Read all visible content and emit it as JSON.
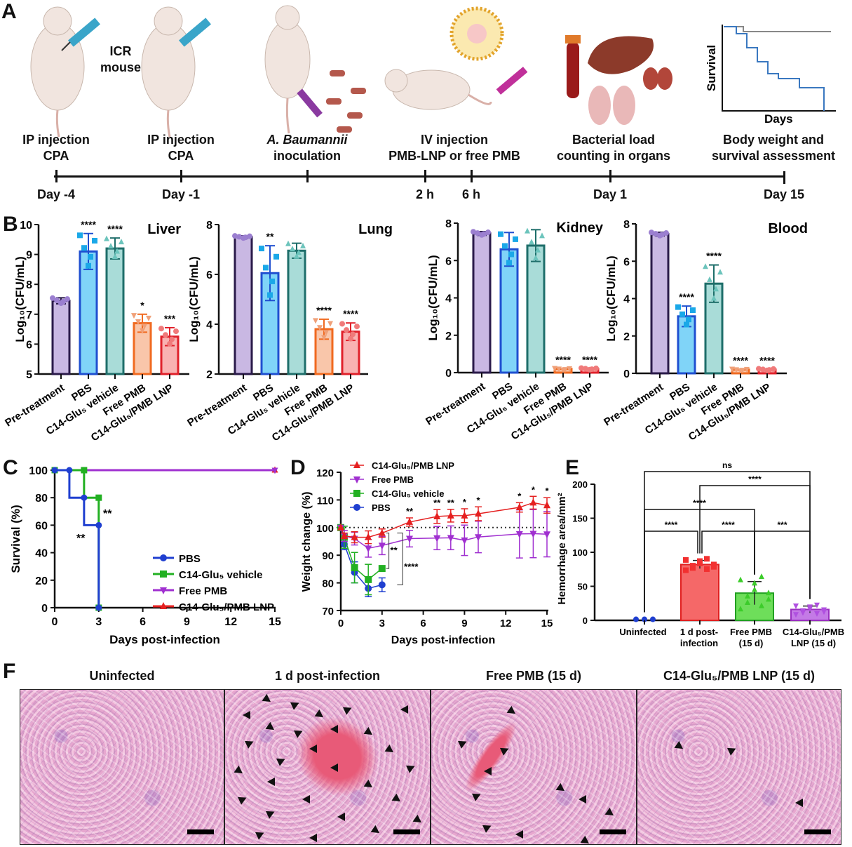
{
  "panel_labels": [
    "A",
    "B",
    "C",
    "D",
    "E",
    "F"
  ],
  "panelA": {
    "mouse_label": "ICR\nmouse",
    "steps": [
      {
        "label": "IP injection\nCPA",
        "day": "Day -4"
      },
      {
        "label": "IP injection\nCPA",
        "day": "Day -1"
      },
      {
        "label_italic": "A. Baumannii",
        "label": "inoculation",
        "day": ""
      },
      {
        "label": "IV injection\nPMB-LNP or free PMB",
        "day": "2 h"
      },
      {
        "label": "",
        "day": "6 h"
      },
      {
        "label": "Bacterial load\ncounting in organs",
        "day": "Day 1"
      },
      {
        "label": "Body weight and\nsurvival assessment",
        "day": "Day 15"
      }
    ],
    "mini_plot": {
      "ylabel": "Survival",
      "xlabel": "Days"
    }
  },
  "chart_data": [
    {
      "id": "B-liver",
      "type": "bar",
      "title": "Liver",
      "ylabel": "Log10(CFU/mL)",
      "ylim": [
        5,
        10
      ],
      "yticks": [
        5,
        6,
        7,
        8,
        9,
        10
      ],
      "categories": [
        "Pre-treatment",
        "PBS",
        "C14-Glu₅ vehicle",
        "Free PMB",
        "C14-Glu₅/PMB LNP"
      ],
      "values": [
        7.45,
        9.1,
        9.2,
        6.7,
        6.25
      ],
      "errors": [
        0.1,
        0.6,
        0.35,
        0.3,
        0.3
      ],
      "significance": [
        "",
        "****",
        "****",
        "*",
        "***"
      ]
    },
    {
      "id": "B-lung",
      "type": "bar",
      "title": "Lung",
      "ylabel": "Log10(CFU/mL)",
      "ylim": [
        2,
        8
      ],
      "yticks": [
        2,
        4,
        6,
        8
      ],
      "categories": [
        "Pre-treatment",
        "PBS",
        "C14-Glu₅ vehicle",
        "Free PMB",
        "C14-Glu₅/PMB LNP"
      ],
      "values": [
        7.5,
        6.05,
        6.95,
        3.8,
        3.7
      ],
      "errors": [
        0.05,
        1.1,
        0.3,
        0.4,
        0.35
      ],
      "significance": [
        "",
        "**",
        "",
        "****",
        "****"
      ]
    },
    {
      "id": "B-kidney",
      "type": "bar",
      "title": "Kidney",
      "ylabel": "Log10(CFU/mL)",
      "ylim": [
        0,
        8
      ],
      "yticks": [
        0,
        2,
        4,
        6,
        8
      ],
      "categories": [
        "Pre-treatment",
        "PBS",
        "C14-Glu₅ vehicle",
        "Free PMB",
        "C14-Glu₅/PMB LNP"
      ],
      "values": [
        7.45,
        6.6,
        6.8,
        0.2,
        0.2
      ],
      "errors": [
        0.1,
        0.9,
        0.85,
        0,
        0
      ],
      "significance": [
        "",
        "",
        "",
        "****",
        "****"
      ]
    },
    {
      "id": "B-blood",
      "type": "bar",
      "title": "Blood",
      "ylabel": "Log10(CFU/mL)",
      "ylim": [
        0,
        8
      ],
      "yticks": [
        0,
        2,
        4,
        6,
        8
      ],
      "categories": [
        "Pre-treatment",
        "PBS",
        "C14-Glu₅ vehicle",
        "Free PMB",
        "C14-Glu₅/PMB LNP"
      ],
      "values": [
        7.45,
        3.05,
        4.8,
        0.2,
        0.2
      ],
      "errors": [
        0.1,
        0.55,
        1.0,
        0,
        0
      ],
      "significance": [
        "",
        "****",
        "****",
        "****",
        "****"
      ]
    },
    {
      "id": "C",
      "type": "line",
      "title": "",
      "xlabel": "Days post-infection",
      "ylabel": "Survival (%)",
      "xlim": [
        0,
        15
      ],
      "ylim": [
        0,
        100
      ],
      "xticks": [
        0,
        3,
        6,
        9,
        12,
        15
      ],
      "yticks": [
        0,
        20,
        40,
        60,
        80,
        100
      ],
      "series": [
        {
          "name": "PBS",
          "color": "#1f3fd0",
          "x": [
            0,
            1,
            1,
            2,
            2,
            3,
            3
          ],
          "y": [
            100,
            100,
            80,
            80,
            60,
            60,
            0
          ]
        },
        {
          "name": "C14-Glu₅ vehicle",
          "color": "#22b022",
          "x": [
            0,
            2,
            2,
            3,
            3
          ],
          "y": [
            100,
            100,
            80,
            80,
            0
          ]
        },
        {
          "name": "Free PMB",
          "color": "#a030d0",
          "x": [
            0,
            15
          ],
          "y": [
            100,
            100
          ]
        },
        {
          "name": "C14-Glu₅/PMB LNP",
          "color": "#e52020",
          "x": [
            0,
            15
          ],
          "y": [
            100,
            100
          ]
        }
      ],
      "annotations": [
        "**",
        "**"
      ]
    },
    {
      "id": "D",
      "type": "line",
      "xlabel": "Days post-infection",
      "ylabel": "Weight change (%)",
      "xlim": [
        0,
        15
      ],
      "ylim": [
        70,
        120
      ],
      "xticks": [
        0,
        3,
        6,
        9,
        12,
        15
      ],
      "yticks": [
        70,
        80,
        90,
        100,
        110,
        120
      ],
      "reference_line": 100,
      "series": [
        {
          "name": "C14-Glu₅/PMB LNP",
          "color": "#e52020",
          "marker": "triangle-up",
          "x": [
            0,
            0.25,
            1,
            2,
            3,
            5,
            7,
            8,
            9,
            10,
            13,
            14,
            15
          ],
          "y": [
            100,
            97,
            96.5,
            96.5,
            98,
            102,
            104,
            104.3,
            104.3,
            105,
            107.3,
            109,
            108
          ],
          "err": [
            0,
            1,
            2,
            2.3,
            1.5,
            1.5,
            2.5,
            2.3,
            2.5,
            2.5,
            1.7,
            2.3,
            2.8
          ],
          "stars": [
            "",
            "",
            "",
            "",
            "",
            "**",
            "**",
            "**",
            "*",
            "*",
            "*",
            "*",
            "*"
          ]
        },
        {
          "name": "Free PMB",
          "color": "#a030d0",
          "marker": "triangle-down",
          "x": [
            0,
            0.25,
            1,
            2,
            3,
            5,
            7,
            8,
            9,
            10,
            13,
            14,
            15
          ],
          "y": [
            100,
            97,
            96,
            92.5,
            93.5,
            96,
            96.2,
            96.3,
            95.4,
            96.6,
            97.7,
            97.8,
            97.6
          ],
          "err": [
            0,
            2,
            2.3,
            3.2,
            3.3,
            3,
            4.2,
            4.3,
            5.5,
            5.7,
            8.7,
            8.7,
            8.2
          ]
        },
        {
          "name": "C14-Glu₅ vehicle",
          "color": "#22b022",
          "marker": "square",
          "x": [
            0,
            0.25,
            1,
            2,
            3
          ],
          "y": [
            100,
            96.5,
            85.5,
            81.2,
            85.2
          ],
          "err": [
            0,
            4,
            5.5,
            5.5,
            0
          ]
        },
        {
          "name": "PBS",
          "color": "#1f3fd0",
          "marker": "circle",
          "x": [
            0,
            0.25,
            1,
            2,
            3
          ],
          "y": [
            100,
            94,
            83.8,
            78,
            79.3
          ],
          "err": [
            0,
            2,
            3.8,
            3,
            2.5
          ]
        }
      ],
      "brackets": [
        "**",
        "****"
      ]
    },
    {
      "id": "E",
      "type": "bar",
      "ylabel": "Hemorrhage area/mm²",
      "ylim": [
        0,
        200
      ],
      "yticks": [
        0,
        50,
        100,
        150,
        200
      ],
      "categories": [
        "Uninfected",
        "1 d post-\ninfection",
        "Free PMB\n(15 d)",
        "C14-Glu₅/PMB\nLNP (15 d)"
      ],
      "values": [
        1.5,
        82,
        40,
        16
      ],
      "errors": [
        0,
        6,
        17,
        5
      ],
      "colors": [
        "#1f3fd0",
        "#f56868",
        "#6ede5a",
        "#c47ae6"
      ],
      "comparisons": [
        {
          "a": 0,
          "b": 3,
          "label": "ns"
        },
        {
          "a": 1,
          "b": 3,
          "label": "****"
        },
        {
          "a": 0,
          "b": 2,
          "label": "****"
        },
        {
          "a": 0,
          "b": 1,
          "label": "****"
        },
        {
          "a": 1,
          "b": 2,
          "label": "****"
        },
        {
          "a": 2,
          "b": 3,
          "label": "***"
        }
      ]
    }
  ],
  "panelF": {
    "titles": [
      "Uninfected",
      "1 d post-infection",
      "Free PMB (15 d)",
      "C14-Glu₅/PMB LNP (15 d)"
    ]
  }
}
